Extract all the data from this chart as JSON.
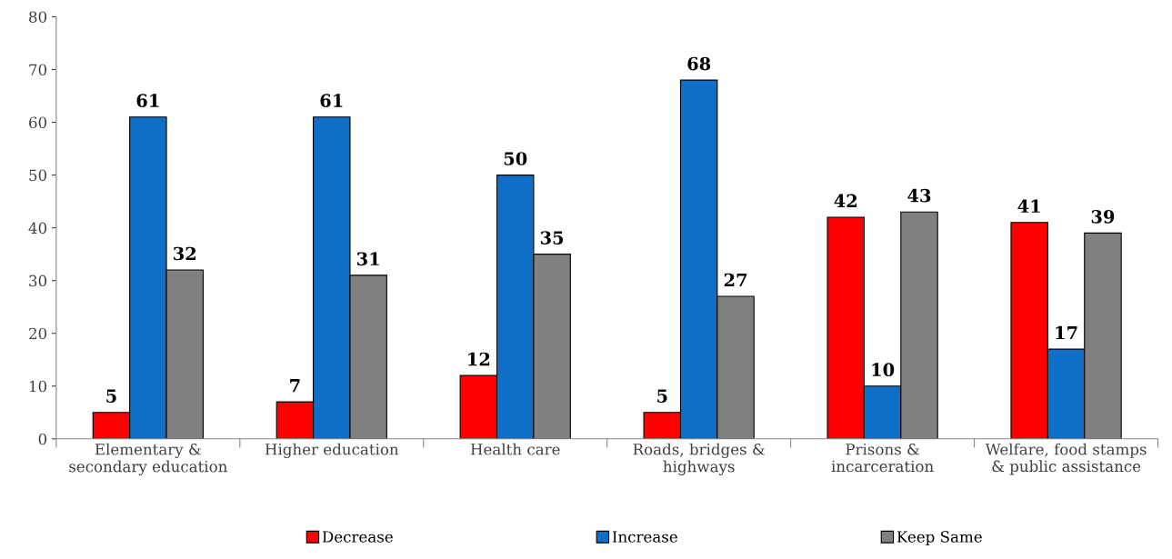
{
  "chart_data": {
    "type": "bar",
    "categories": [
      "Elementary & secondary education",
      "Higher education",
      "Health care",
      "Roads, bridges & highways",
      "Prisons & incarceration",
      "Welfare, food stamps & public assistance"
    ],
    "series": [
      {
        "name": "Decrease",
        "color": "#ff0000",
        "values": [
          5,
          7,
          12,
          5,
          42,
          41
        ]
      },
      {
        "name": "Increase",
        "color": "#0f6fc6",
        "values": [
          61,
          61,
          50,
          68,
          10,
          17
        ]
      },
      {
        "name": "Keep Same",
        "color": "#808080",
        "values": [
          32,
          31,
          35,
          27,
          43,
          39
        ]
      }
    ],
    "ylim": [
      0,
      80
    ],
    "yticks": [
      0,
      10,
      20,
      30,
      40,
      50,
      60,
      70,
      80
    ],
    "data_labels": true,
    "grid": false,
    "legend": "bottom"
  }
}
